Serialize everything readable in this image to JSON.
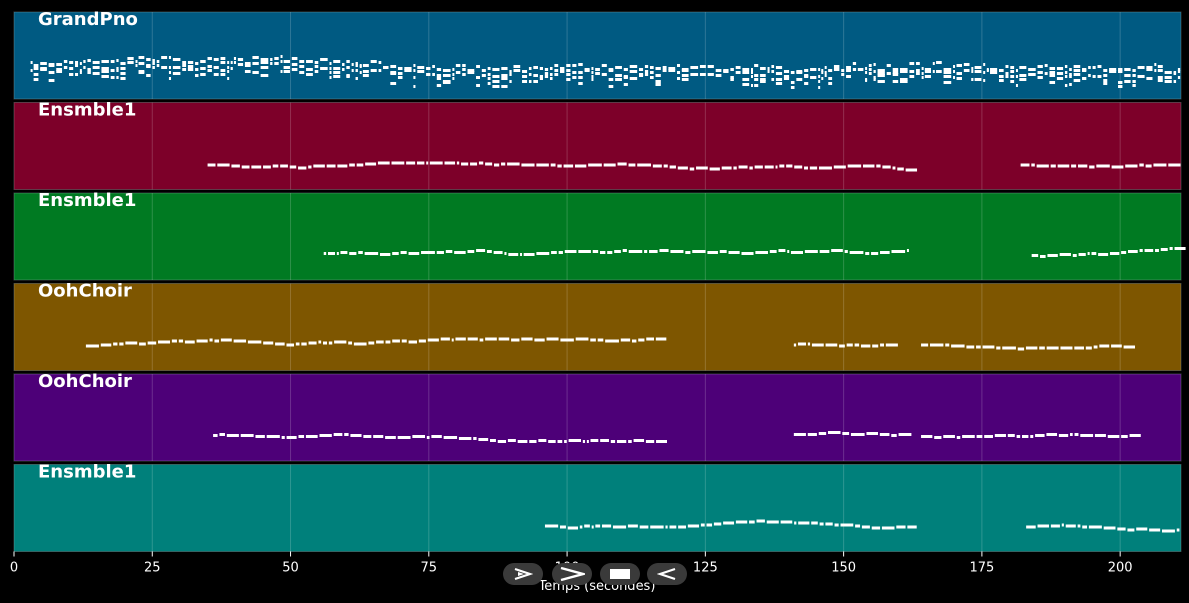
{
  "chart_data": {
    "type": "piano-roll",
    "xlabel": "Temps (secondes)",
    "xlim": [
      0,
      211
    ],
    "xticks": [
      0,
      25,
      50,
      75,
      100,
      125,
      150,
      175,
      200
    ],
    "grid": true,
    "tracks": [
      {
        "name": "GrandPno",
        "color": "#005a82",
        "segments": [
          [
            3,
            211
          ]
        ],
        "density": "dense"
      },
      {
        "name": "Ensmble1",
        "color": "#7d0029",
        "segments": [
          [
            35,
            162
          ],
          [
            182,
            211
          ]
        ],
        "density": "medium"
      },
      {
        "name": "Ensmble1",
        "color": "#007a22",
        "segments": [
          [
            56,
            162
          ],
          [
            184,
            211
          ]
        ],
        "density": "medium"
      },
      {
        "name": "OohChoir",
        "color": "#7e5600",
        "segments": [
          [
            13,
            117
          ],
          [
            141,
            160
          ],
          [
            164,
            203
          ]
        ],
        "density": "medium"
      },
      {
        "name": "OohChoir",
        "color": "#4d0078",
        "segments": [
          [
            36,
            117
          ],
          [
            141,
            160
          ],
          [
            164,
            203
          ]
        ],
        "density": "medium"
      },
      {
        "name": "Ensmble1",
        "color": "#00807b",
        "segments": [
          [
            96,
            162
          ],
          [
            183,
            211
          ]
        ],
        "density": "medium"
      }
    ]
  },
  "controls": [
    {
      "name": "play-icon",
      "label": "play"
    },
    {
      "name": "forward-icon",
      "label": "forward"
    },
    {
      "name": "stop-icon",
      "label": "stop"
    },
    {
      "name": "rewind-icon",
      "label": "rewind"
    }
  ]
}
